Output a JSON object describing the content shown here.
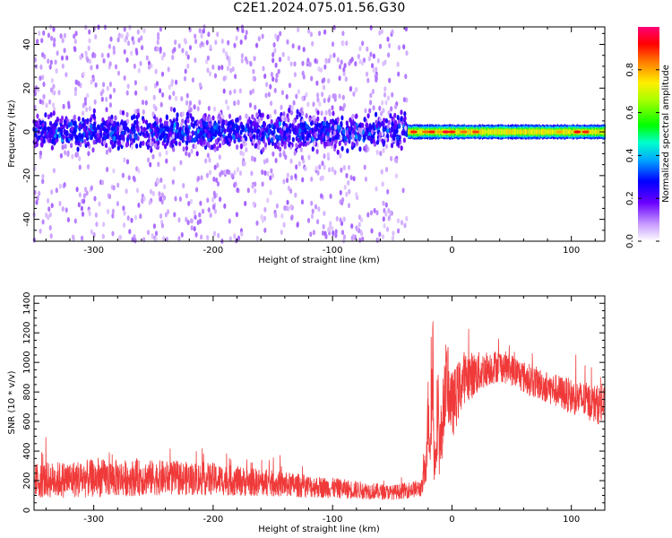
{
  "title": "C2E1.2024.075.01.56.G30",
  "colors": {
    "snr_line": "#f03a3a",
    "spectrum_low": "#9b30ff",
    "spectrum_high": "#ff0000"
  },
  "chart_data": [
    {
      "type": "heatmap",
      "name": "spectrogram",
      "xlabel": "Height of straight line (km)",
      "ylabel": "Frequency (Hz)",
      "xlim": [
        -350,
        128
      ],
      "ylim": [
        -50,
        48
      ],
      "xticks": [
        -300,
        -200,
        -100,
        0,
        100
      ],
      "yticks": [
        -40,
        -20,
        0,
        20,
        40
      ],
      "grid": false,
      "colorbar": {
        "label": "Normalized spectral amplitude",
        "ticks": [
          0.0,
          0.2,
          0.4,
          0.6,
          0.8
        ],
        "range": [
          0,
          1
        ]
      },
      "regions": [
        {
          "x_range": [
            -350,
            -37
          ],
          "description_level": "broad noise, dense band near 0 Hz",
          "band_halfwidth_hz": 10,
          "scatter_halfwidth_hz": 50,
          "peak_amplitude": 0.35
        },
        {
          "x_range": [
            -37,
            128
          ],
          "description_level": "narrow band centered at 0 Hz",
          "band_halfwidth_hz": 3,
          "peak_amplitude": 0.95
        }
      ]
    },
    {
      "type": "line",
      "name": "snr",
      "xlabel": "Height of straight line (km)",
      "ylabel": "SNR (10 * v/v)",
      "xlim": [
        -350,
        128
      ],
      "ylim": [
        0,
        1450
      ],
      "xticks": [
        -300,
        -200,
        -100,
        0,
        100
      ],
      "yticks": [
        0,
        200,
        400,
        600,
        800,
        1000,
        1200,
        1400
      ],
      "grid": false,
      "series": [
        {
          "x": [
            -350,
            -300,
            -250,
            -200,
            -150,
            -100,
            -50,
            -25,
            -22,
            -20,
            -18,
            -16,
            -15,
            -12,
            -10,
            -5,
            0,
            10,
            20,
            30,
            40,
            50,
            60,
            80,
            100,
            120,
            128
          ],
          "y": [
            200,
            215,
            220,
            210,
            180,
            150,
            120,
            150,
            300,
            650,
            500,
            1100,
            250,
            700,
            400,
            900,
            700,
            900,
            920,
            960,
            980,
            950,
            900,
            830,
            770,
            720,
            700
          ],
          "spread": [
            120,
            130,
            120,
            110,
            90,
            70,
            50,
            60,
            150,
            250,
            300,
            350,
            200,
            300,
            250,
            250,
            230,
            180,
            150,
            120,
            110,
            110,
            110,
            110,
            120,
            130,
            140
          ]
        }
      ]
    }
  ]
}
